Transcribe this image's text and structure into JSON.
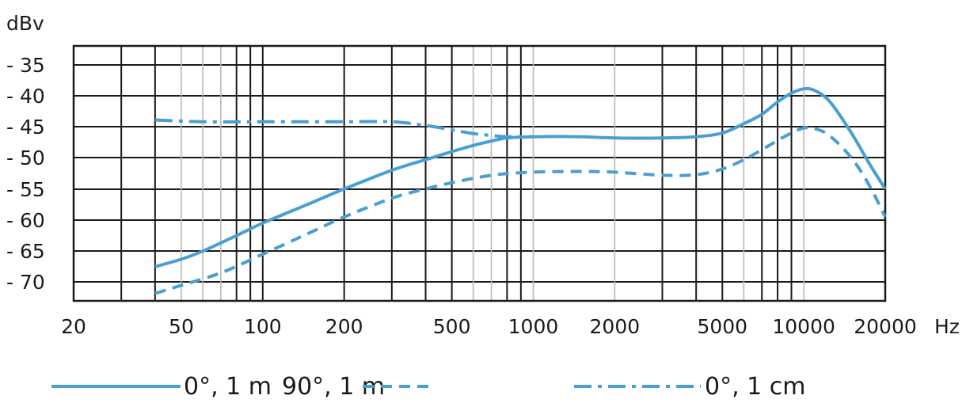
{
  "chart_data": {
    "type": "line",
    "title": "",
    "xlabel": "Hz",
    "ylabel": "dBv",
    "x_scale": "log",
    "xlim": [
      20,
      20000
    ],
    "ylim": [
      -73,
      -32
    ],
    "x_ticks": [
      20,
      50,
      100,
      200,
      500,
      1000,
      2000,
      5000,
      10000,
      20000
    ],
    "x_tick_labels": [
      "20",
      "50",
      "100",
      "200",
      "500",
      "1000",
      "2000",
      "5000",
      "10000",
      "20000"
    ],
    "y_ticks": [
      -35,
      -40,
      -45,
      -50,
      -55,
      -60,
      -65,
      -70
    ],
    "y_tick_labels": [
      "- 35",
      "- 40",
      "- 45",
      "- 50",
      "- 55",
      "- 60",
      "- 65",
      "- 70"
    ],
    "grid": true,
    "legend_position": "bottom",
    "series": [
      {
        "name": "0°, 1 m",
        "style": "solid",
        "color": "#4a9fd1",
        "points": [
          [
            40,
            -67.5
          ],
          [
            50,
            -66.3
          ],
          [
            60,
            -65
          ],
          [
            80,
            -62.5
          ],
          [
            100,
            -60.5
          ],
          [
            150,
            -57.3
          ],
          [
            200,
            -55
          ],
          [
            300,
            -52
          ],
          [
            400,
            -50.3
          ],
          [
            500,
            -49
          ],
          [
            600,
            -48
          ],
          [
            700,
            -47.3
          ],
          [
            800,
            -46.8
          ],
          [
            1000,
            -46.6
          ],
          [
            1500,
            -46.6
          ],
          [
            2000,
            -46.8
          ],
          [
            3000,
            -46.8
          ],
          [
            4000,
            -46.6
          ],
          [
            5000,
            -46
          ],
          [
            6000,
            -44.5
          ],
          [
            7000,
            -43
          ],
          [
            8000,
            -41
          ],
          [
            9000,
            -39.6
          ],
          [
            10000,
            -38.9
          ],
          [
            11000,
            -39.2
          ],
          [
            12500,
            -41
          ],
          [
            15000,
            -46
          ],
          [
            17500,
            -51
          ],
          [
            20000,
            -55
          ]
        ]
      },
      {
        "name": "90°, 1 m",
        "style": "dashed",
        "color": "#4a9fd1",
        "points": [
          [
            40,
            -71.8
          ],
          [
            50,
            -70.5
          ],
          [
            70,
            -68.5
          ],
          [
            100,
            -65.5
          ],
          [
            150,
            -62
          ],
          [
            200,
            -59.5
          ],
          [
            300,
            -56.5
          ],
          [
            400,
            -55
          ],
          [
            500,
            -54
          ],
          [
            700,
            -52.8
          ],
          [
            1000,
            -52.3
          ],
          [
            1500,
            -52.2
          ],
          [
            2000,
            -52.3
          ],
          [
            3000,
            -52.8
          ],
          [
            4000,
            -52.7
          ],
          [
            5000,
            -51.8
          ],
          [
            6000,
            -50.3
          ],
          [
            7000,
            -48.7
          ],
          [
            8000,
            -47.2
          ],
          [
            9000,
            -46
          ],
          [
            10000,
            -45.2
          ],
          [
            11000,
            -45.3
          ],
          [
            12500,
            -46.5
          ],
          [
            15000,
            -50
          ],
          [
            17500,
            -54.5
          ],
          [
            20000,
            -59.5
          ]
        ]
      },
      {
        "name": "0°, 1 cm",
        "style": "dashdot",
        "color": "#4a9fd1",
        "points": [
          [
            40,
            -43.9
          ],
          [
            60,
            -44.2
          ],
          [
            100,
            -44.2
          ],
          [
            200,
            -44.2
          ],
          [
            300,
            -44.2
          ],
          [
            400,
            -44.8
          ],
          [
            500,
            -45.5
          ],
          [
            600,
            -46.1
          ],
          [
            700,
            -46.4
          ],
          [
            800,
            -46.6
          ],
          [
            1000,
            -46.6
          ]
        ]
      }
    ]
  }
}
